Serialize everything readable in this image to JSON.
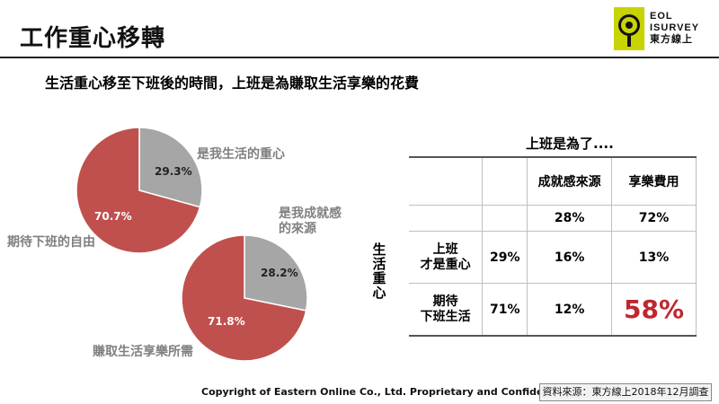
{
  "slide": {
    "title": "工作重心移轉",
    "subtitle": "生活重心移至下班後的時間，上班是為賺取生活享樂的花費"
  },
  "logo": {
    "line1": "EOL",
    "line2": "ISURVEY",
    "line3": "東方線上"
  },
  "pie_labels": {
    "chart1_a": "是我生活的重心",
    "chart1_b": "期待下班的自由",
    "chart2_a_line1": "是我成就感",
    "chart2_a_line2": "的來源",
    "chart2_b": "賺取生活享樂所需"
  },
  "chart_data": [
    {
      "type": "pie",
      "series": [
        {
          "values": [
            29.3,
            70.7
          ]
        }
      ],
      "categories": [
        "是我生活的重心",
        "期待下班的自由"
      ],
      "labels": [
        "29.3%",
        "70.7%"
      ],
      "colors": [
        "#a6a6a6",
        "#c0504d"
      ]
    },
    {
      "type": "pie",
      "series": [
        {
          "values": [
            28.2,
            71.8
          ]
        }
      ],
      "categories": [
        "是我成就感的來源",
        "賺取生活享樂所需"
      ],
      "labels": [
        "28.2%",
        "71.8%"
      ],
      "colors": [
        "#a6a6a6",
        "#c0504d"
      ]
    },
    {
      "type": "table",
      "title": "上班是為了....",
      "row_axis_label": "生活重心",
      "columns": [
        "成就感來源",
        "享樂費用"
      ],
      "column_totals": [
        "28%",
        "72%"
      ],
      "rows": [
        {
          "label_line1": "上班",
          "label_line2": "才是重心",
          "total": "29%",
          "cells": [
            "16%",
            "13%"
          ]
        },
        {
          "label_line1": "期待",
          "label_line2": "下班生活",
          "total": "71%",
          "cells": [
            "12%",
            "58%"
          ]
        }
      ]
    }
  ],
  "footer": {
    "copyright": "Copyright of Eastern Online Co., Ltd. Proprietary and Confidential.",
    "source": "資料來源：東方線上2018年12月調查"
  }
}
